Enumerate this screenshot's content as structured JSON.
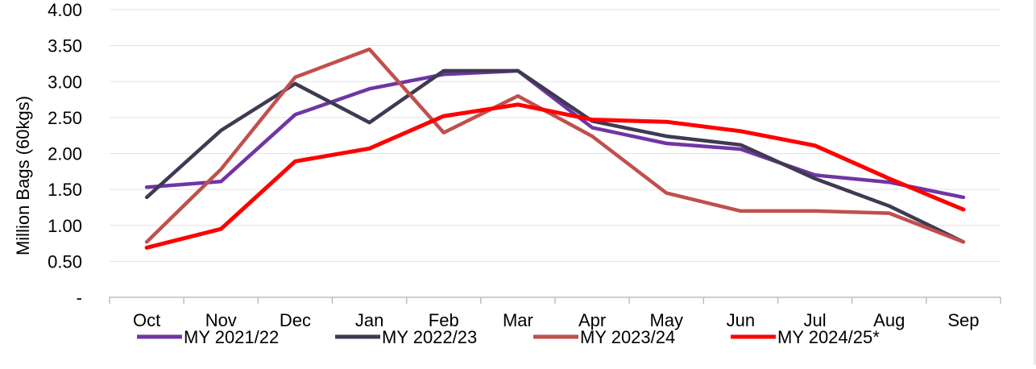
{
  "chart_data": {
    "type": "line",
    "ylabel": "Million Bags (60kgs)",
    "xlabel": "",
    "categories": [
      "Oct",
      "Nov",
      "Dec",
      "Jan",
      "Feb",
      "Mar",
      "Apr",
      "May",
      "Jun",
      "Jul",
      "Aug",
      "Sep"
    ],
    "y_ticks": [
      "-",
      "0.50",
      "1.00",
      "1.50",
      "2.00",
      "2.50",
      "3.00",
      "3.50",
      "4.00"
    ],
    "ylim": [
      0,
      4
    ],
    "grid": true,
    "legend_position": "bottom",
    "series": [
      {
        "name": "MY 2021/22",
        "color": "#6f35a5",
        "values": [
          1.53,
          1.61,
          2.54,
          2.9,
          3.1,
          3.15,
          2.36,
          2.14,
          2.06,
          1.7,
          1.6,
          1.39
        ]
      },
      {
        "name": "MY 2022/23",
        "color": "#3f3a52",
        "values": [
          1.39,
          2.32,
          2.97,
          2.43,
          3.15,
          3.15,
          2.45,
          2.24,
          2.12,
          1.65,
          1.27,
          0.77
        ]
      },
      {
        "name": "MY 2023/24",
        "color": "#c0504d",
        "values": [
          0.77,
          1.78,
          3.06,
          3.45,
          2.29,
          2.8,
          2.24,
          1.45,
          1.2,
          1.2,
          1.17,
          0.77
        ]
      },
      {
        "name": "MY 2024/25*",
        "color": "#ff0000",
        "values": [
          0.69,
          0.95,
          1.89,
          2.07,
          2.52,
          2.68,
          2.47,
          2.44,
          2.31,
          2.11,
          1.65,
          1.22
        ]
      }
    ]
  }
}
